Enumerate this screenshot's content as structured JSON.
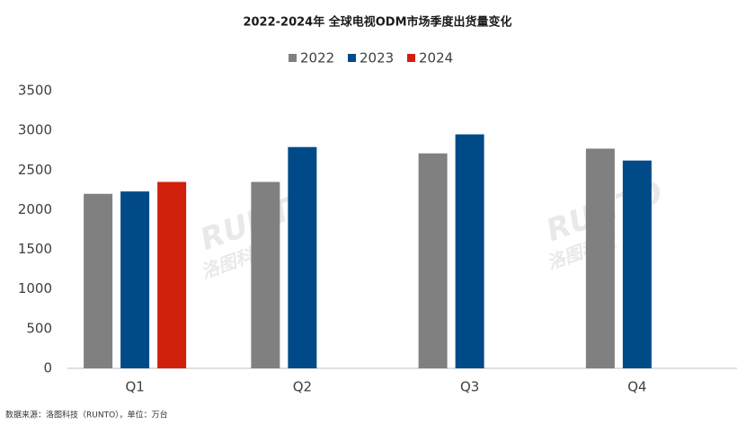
{
  "chart_data": {
    "type": "bar",
    "title": "2022-2024年 全球电视ODM市场季度出货量变化",
    "categories": [
      "Q1",
      "Q2",
      "Q3",
      "Q4"
    ],
    "series": [
      {
        "name": "2022",
        "color": "#808080",
        "values": [
          2200,
          2350,
          2710,
          2770
        ]
      },
      {
        "name": "2023",
        "color": "#004b87",
        "values": [
          2230,
          2790,
          2950,
          2620
        ]
      },
      {
        "name": "2024",
        "color": "#d0200c",
        "values": [
          2350,
          null,
          null,
          null
        ]
      }
    ],
    "ylim": [
      0,
      3500
    ],
    "yticks": [
      0,
      500,
      1000,
      1500,
      2000,
      2500,
      3000,
      3500
    ],
    "grid": false,
    "legend": "top",
    "watermark": [
      "RUNTO",
      "洛图科技"
    ],
    "source": "数据来源：洛图科技（RUNTO），单位：万台"
  }
}
